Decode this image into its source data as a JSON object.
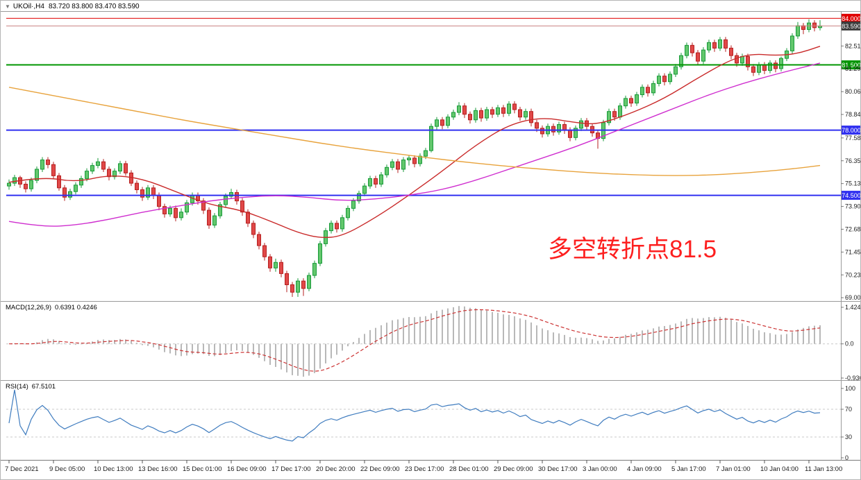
{
  "title": {
    "symbol_period": "UKOil·,H4",
    "ohlc": "83.720 83.800 83.470 83.590"
  },
  "annotation": {
    "text": "多空转折点81.5",
    "color": "#fd1f1f"
  },
  "chart_data": {
    "type": "candlestick",
    "symbol": "UKOil",
    "timeframe": "H4",
    "ohlc_display": {
      "open": "83.720",
      "high": "83.800",
      "low": "83.470",
      "close": "83.590"
    },
    "y_range": {
      "min": 68.9,
      "max": 84.35
    },
    "price_axis_labels": [
      "82.515",
      "81.290",
      "80.065",
      "78.840",
      "77.580",
      "76.355",
      "75.130",
      "73.905",
      "72.680",
      "71.455",
      "70.230",
      "69.005"
    ],
    "levels": [
      {
        "price": 84.0,
        "label": "84.000",
        "color": "#e00000",
        "width": 1
      },
      {
        "price": 81.5,
        "label": "81.500",
        "color": "#009500",
        "width": 2
      },
      {
        "price": 78.0,
        "label": "78.000",
        "color": "#3030f0",
        "width": 2
      },
      {
        "price": 74.5,
        "label": "74.500",
        "color": "#3030f0",
        "width": 2
      }
    ],
    "current_price": {
      "price": 83.59,
      "label": "83.590",
      "line_color": "#c98080",
      "box_color": "#3c3c3c"
    },
    "colors": {
      "up_fill": "#63c76d",
      "up_stroke": "#179a38",
      "down_fill": "#e04848",
      "down_stroke": "#b51f1f",
      "macd_hist": "#b8b8b8",
      "macd_signal": "#cc3333",
      "rsi_line": "#3f7cbf",
      "axis_text": "#1a1a1a",
      "grid": "#c8c8c8",
      "frame": "#9a9a9a"
    },
    "time_axis": [
      {
        "i": 0,
        "label": "7 Dec 2021"
      },
      {
        "i": 8,
        "label": "9 Dec 05:00"
      },
      {
        "i": 16,
        "label": "10 Dec 13:00"
      },
      {
        "i": 24,
        "label": "13 Dec 16:00"
      },
      {
        "i": 32,
        "label": "15 Dec 01:00"
      },
      {
        "i": 40,
        "label": "16 Dec 09:00"
      },
      {
        "i": 48,
        "label": "17 Dec 17:00"
      },
      {
        "i": 56,
        "label": "20 Dec 20:00"
      },
      {
        "i": 64,
        "label": "22 Dec 09:00"
      },
      {
        "i": 72,
        "label": "23 Dec 17:00"
      },
      {
        "i": 80,
        "label": "28 Dec 01:00"
      },
      {
        "i": 88,
        "label": "29 Dec 09:00"
      },
      {
        "i": 96,
        "label": "30 Dec 17:00"
      },
      {
        "i": 104,
        "label": "3 Jan 00:00"
      },
      {
        "i": 112,
        "label": "4 Jan 09:00"
      },
      {
        "i": 120,
        "label": "5 Jan 17:00"
      },
      {
        "i": 128,
        "label": "7 Jan 01:00"
      },
      {
        "i": 136,
        "label": "10 Jan 04:00"
      },
      {
        "i": 144,
        "label": "11 Jan 13:00"
      }
    ],
    "candles": [
      [
        75.0,
        75.35,
        74.8,
        75.15
      ],
      [
        75.15,
        75.6,
        75.0,
        75.45
      ],
      [
        75.45,
        75.55,
        74.9,
        75.1
      ],
      [
        75.1,
        75.25,
        74.65,
        74.85
      ],
      [
        74.85,
        75.45,
        74.7,
        75.3
      ],
      [
        75.3,
        76.05,
        75.15,
        75.9
      ],
      [
        75.9,
        76.55,
        75.75,
        76.4
      ],
      [
        76.4,
        76.55,
        75.95,
        76.15
      ],
      [
        76.15,
        76.3,
        75.4,
        75.55
      ],
      [
        75.55,
        75.7,
        74.75,
        74.9
      ],
      [
        74.9,
        75.05,
        74.2,
        74.4
      ],
      [
        74.4,
        74.85,
        74.25,
        74.7
      ],
      [
        74.7,
        75.2,
        74.55,
        75.05
      ],
      [
        75.05,
        75.55,
        74.9,
        75.4
      ],
      [
        75.4,
        75.95,
        75.25,
        75.8
      ],
      [
        75.8,
        76.25,
        75.65,
        76.1
      ],
      [
        76.1,
        76.5,
        75.95,
        76.3
      ],
      [
        76.3,
        76.45,
        75.75,
        75.9
      ],
      [
        75.9,
        76.05,
        75.3,
        75.5
      ],
      [
        75.5,
        75.95,
        75.35,
        75.8
      ],
      [
        75.8,
        76.35,
        75.65,
        76.2
      ],
      [
        76.2,
        76.35,
        75.55,
        75.7
      ],
      [
        75.7,
        75.85,
        75.0,
        75.15
      ],
      [
        75.15,
        75.3,
        74.6,
        74.8
      ],
      [
        74.8,
        74.95,
        74.2,
        74.4
      ],
      [
        74.4,
        75.05,
        74.25,
        74.9
      ],
      [
        74.9,
        75.05,
        74.3,
        74.5
      ],
      [
        74.5,
        74.65,
        73.7,
        73.9
      ],
      [
        73.9,
        74.05,
        73.3,
        73.5
      ],
      [
        73.5,
        73.95,
        73.35,
        73.8
      ],
      [
        73.8,
        73.95,
        73.1,
        73.3
      ],
      [
        73.3,
        73.8,
        73.15,
        73.6
      ],
      [
        73.6,
        74.25,
        73.45,
        74.1
      ],
      [
        74.1,
        74.65,
        73.95,
        74.5
      ],
      [
        74.5,
        74.65,
        74.0,
        74.2
      ],
      [
        74.2,
        74.35,
        73.5,
        73.7
      ],
      [
        73.7,
        73.85,
        72.7,
        72.9
      ],
      [
        72.9,
        73.55,
        72.75,
        73.4
      ],
      [
        73.4,
        74.15,
        73.25,
        74.0
      ],
      [
        74.0,
        74.6,
        73.85,
        74.45
      ],
      [
        74.45,
        74.85,
        74.3,
        74.65
      ],
      [
        74.65,
        74.8,
        74.0,
        74.2
      ],
      [
        74.2,
        74.35,
        73.4,
        73.6
      ],
      [
        73.6,
        73.75,
        72.8,
        73.0
      ],
      [
        73.0,
        73.15,
        72.2,
        72.4
      ],
      [
        72.4,
        72.55,
        71.6,
        71.8
      ],
      [
        71.8,
        71.95,
        71.0,
        71.2
      ],
      [
        71.2,
        71.35,
        70.4,
        70.6
      ],
      [
        70.6,
        71.1,
        70.4,
        70.9
      ],
      [
        70.9,
        71.05,
        70.1,
        70.3
      ],
      [
        70.3,
        70.45,
        69.3,
        69.7
      ],
      [
        69.7,
        69.85,
        69.05,
        69.3
      ],
      [
        69.3,
        70.05,
        69.05,
        69.9
      ],
      [
        69.9,
        70.05,
        69.1,
        69.5
      ],
      [
        69.5,
        70.35,
        69.35,
        70.2
      ],
      [
        70.2,
        71.0,
        70.05,
        70.85
      ],
      [
        70.85,
        72.05,
        70.7,
        71.9
      ],
      [
        71.9,
        72.75,
        71.75,
        72.6
      ],
      [
        72.6,
        73.15,
        72.45,
        73.0
      ],
      [
        73.0,
        73.15,
        72.5,
        72.7
      ],
      [
        72.7,
        73.45,
        72.55,
        73.3
      ],
      [
        73.3,
        73.95,
        73.15,
        73.8
      ],
      [
        73.8,
        74.35,
        73.65,
        74.2
      ],
      [
        74.2,
        74.75,
        74.05,
        74.6
      ],
      [
        74.6,
        75.15,
        74.45,
        75.0
      ],
      [
        75.0,
        75.55,
        74.85,
        75.4
      ],
      [
        75.4,
        75.55,
        74.9,
        75.1
      ],
      [
        75.1,
        75.75,
        74.95,
        75.6
      ],
      [
        75.6,
        76.15,
        75.45,
        76.0
      ],
      [
        76.0,
        76.45,
        75.85,
        76.3
      ],
      [
        76.3,
        76.45,
        75.7,
        75.9
      ],
      [
        75.9,
        76.55,
        75.75,
        76.4
      ],
      [
        76.4,
        76.65,
        76.1,
        76.5
      ],
      [
        76.5,
        76.65,
        76.0,
        76.2
      ],
      [
        76.2,
        76.75,
        76.05,
        76.6
      ],
      [
        76.6,
        77.05,
        76.45,
        76.9
      ],
      [
        76.9,
        78.35,
        76.8,
        78.2
      ],
      [
        78.2,
        78.7,
        78.0,
        78.55
      ],
      [
        78.55,
        78.7,
        78.05,
        78.25
      ],
      [
        78.25,
        78.85,
        78.1,
        78.7
      ],
      [
        78.7,
        79.1,
        78.55,
        78.95
      ],
      [
        78.95,
        79.5,
        78.8,
        79.3
      ],
      [
        79.3,
        79.45,
        78.65,
        78.85
      ],
      [
        78.85,
        79.0,
        78.35,
        78.55
      ],
      [
        78.55,
        79.2,
        78.4,
        79.05
      ],
      [
        79.05,
        79.2,
        78.45,
        78.65
      ],
      [
        78.65,
        79.25,
        78.5,
        79.1
      ],
      [
        79.1,
        79.25,
        78.65,
        78.85
      ],
      [
        78.85,
        79.35,
        78.7,
        79.2
      ],
      [
        79.2,
        79.35,
        78.7,
        78.9
      ],
      [
        78.9,
        79.55,
        78.75,
        79.4
      ],
      [
        79.4,
        79.55,
        78.9,
        79.1
      ],
      [
        79.1,
        79.25,
        78.5,
        78.7
      ],
      [
        78.7,
        79.15,
        78.55,
        79.0
      ],
      [
        79.0,
        79.15,
        78.2,
        78.4
      ],
      [
        78.4,
        78.55,
        77.9,
        78.1
      ],
      [
        78.1,
        78.25,
        77.6,
        77.8
      ],
      [
        77.8,
        78.35,
        77.65,
        78.2
      ],
      [
        78.2,
        78.35,
        77.7,
        77.9
      ],
      [
        77.9,
        78.45,
        77.75,
        78.3
      ],
      [
        78.3,
        78.45,
        77.8,
        78.0
      ],
      [
        78.0,
        78.15,
        77.4,
        77.6
      ],
      [
        77.6,
        78.25,
        77.45,
        78.1
      ],
      [
        78.1,
        78.65,
        77.95,
        78.5
      ],
      [
        78.5,
        78.65,
        78.0,
        78.2
      ],
      [
        78.2,
        78.35,
        77.65,
        77.85
      ],
      [
        77.85,
        78.0,
        77.0,
        77.55
      ],
      [
        77.55,
        78.55,
        77.4,
        78.4
      ],
      [
        78.4,
        79.15,
        78.25,
        79.0
      ],
      [
        79.0,
        79.15,
        78.5,
        78.7
      ],
      [
        78.7,
        79.45,
        78.55,
        79.3
      ],
      [
        79.3,
        79.85,
        79.15,
        79.7
      ],
      [
        79.7,
        79.85,
        79.25,
        79.45
      ],
      [
        79.45,
        80.05,
        79.3,
        79.9
      ],
      [
        79.9,
        80.45,
        79.75,
        80.3
      ],
      [
        80.3,
        80.45,
        79.8,
        80.0
      ],
      [
        80.0,
        80.65,
        79.85,
        80.5
      ],
      [
        80.5,
        81.05,
        80.35,
        80.9
      ],
      [
        80.9,
        81.05,
        80.4,
        80.6
      ],
      [
        80.6,
        81.15,
        80.45,
        81.0
      ],
      [
        81.0,
        81.55,
        80.85,
        81.4
      ],
      [
        81.4,
        82.15,
        81.25,
        82.0
      ],
      [
        82.0,
        82.7,
        81.85,
        82.55
      ],
      [
        82.55,
        82.7,
        81.95,
        82.15
      ],
      [
        82.15,
        82.3,
        81.5,
        81.7
      ],
      [
        81.7,
        82.45,
        81.55,
        82.3
      ],
      [
        82.3,
        82.85,
        82.15,
        82.7
      ],
      [
        82.7,
        82.85,
        82.2,
        82.4
      ],
      [
        82.4,
        83.0,
        82.25,
        82.85
      ],
      [
        82.85,
        83.0,
        82.2,
        82.4
      ],
      [
        82.4,
        82.55,
        81.8,
        82.0
      ],
      [
        82.0,
        82.15,
        81.4,
        81.6
      ],
      [
        81.6,
        82.1,
        81.45,
        81.95
      ],
      [
        81.95,
        82.1,
        81.2,
        81.4
      ],
      [
        81.4,
        81.55,
        80.9,
        81.1
      ],
      [
        81.1,
        81.65,
        80.95,
        81.5
      ],
      [
        81.5,
        81.65,
        81.0,
        81.2
      ],
      [
        81.2,
        81.75,
        81.05,
        81.6
      ],
      [
        81.6,
        81.75,
        81.1,
        81.3
      ],
      [
        81.3,
        81.95,
        81.15,
        81.85
      ],
      [
        81.85,
        82.4,
        81.7,
        82.25
      ],
      [
        82.25,
        83.2,
        82.1,
        83.05
      ],
      [
        83.05,
        83.8,
        82.9,
        83.6
      ],
      [
        83.6,
        83.75,
        83.15,
        83.4
      ],
      [
        83.4,
        83.95,
        83.25,
        83.75
      ],
      [
        83.75,
        83.9,
        83.3,
        83.5
      ],
      [
        83.5,
        83.9,
        83.35,
        83.59
      ]
    ],
    "moving_averages": [
      {
        "name": "fast-ma",
        "color": "#c92a2a",
        "points": [
          [
            0,
            75.2
          ],
          [
            6,
            75.5
          ],
          [
            12,
            75.2
          ],
          [
            18,
            75.6
          ],
          [
            24,
            75.4
          ],
          [
            30,
            74.7
          ],
          [
            36,
            74.0
          ],
          [
            42,
            73.7
          ],
          [
            48,
            73.0
          ],
          [
            52,
            72.5
          ],
          [
            56,
            72.2
          ],
          [
            60,
            72.3
          ],
          [
            66,
            73.3
          ],
          [
            72,
            74.5
          ],
          [
            78,
            75.8
          ],
          [
            84,
            77.2
          ],
          [
            90,
            78.3
          ],
          [
            96,
            78.7
          ],
          [
            102,
            78.4
          ],
          [
            106,
            78.3
          ],
          [
            112,
            78.9
          ],
          [
            118,
            79.7
          ],
          [
            124,
            80.8
          ],
          [
            130,
            81.8
          ],
          [
            134,
            82.1
          ],
          [
            138,
            82.0
          ],
          [
            142,
            82.1
          ],
          [
            146,
            82.5
          ]
        ]
      },
      {
        "name": "medium-ma",
        "color": "#cf2ecf",
        "points": [
          [
            0,
            73.1
          ],
          [
            6,
            72.8
          ],
          [
            12,
            72.9
          ],
          [
            18,
            73.2
          ],
          [
            24,
            73.6
          ],
          [
            30,
            73.9
          ],
          [
            36,
            74.2
          ],
          [
            42,
            74.4
          ],
          [
            48,
            74.5
          ],
          [
            54,
            74.4
          ],
          [
            60,
            74.2
          ],
          [
            66,
            74.3
          ],
          [
            72,
            74.5
          ],
          [
            78,
            74.8
          ],
          [
            84,
            75.3
          ],
          [
            90,
            75.9
          ],
          [
            96,
            76.5
          ],
          [
            102,
            77.1
          ],
          [
            108,
            77.8
          ],
          [
            114,
            78.5
          ],
          [
            120,
            79.2
          ],
          [
            126,
            79.9
          ],
          [
            132,
            80.5
          ],
          [
            138,
            81.0
          ],
          [
            146,
            81.6
          ]
        ]
      },
      {
        "name": "slow-ma",
        "color": "#e8a33d",
        "points": [
          [
            0,
            80.3
          ],
          [
            8,
            79.85
          ],
          [
            16,
            79.4
          ],
          [
            24,
            78.95
          ],
          [
            32,
            78.5
          ],
          [
            40,
            78.1
          ],
          [
            48,
            77.7
          ],
          [
            56,
            77.3
          ],
          [
            64,
            76.95
          ],
          [
            72,
            76.65
          ],
          [
            80,
            76.35
          ],
          [
            88,
            76.1
          ],
          [
            96,
            75.9
          ],
          [
            104,
            75.72
          ],
          [
            112,
            75.6
          ],
          [
            120,
            75.55
          ],
          [
            128,
            75.6
          ],
          [
            136,
            75.78
          ],
          [
            142,
            75.95
          ],
          [
            146,
            76.1
          ]
        ]
      }
    ],
    "macd": {
      "label": "MACD(12,26,9)",
      "values_text": "0.6391 0.4246",
      "fast": 12,
      "slow": 26,
      "signal": 9,
      "axis_labels": [
        "1.4246",
        "0.0",
        "-0.9363"
      ]
    },
    "rsi": {
      "label": "RSI(14)",
      "value_text": "67.5101",
      "period": 14,
      "axis_labels": [
        "100",
        "70",
        "30",
        "0"
      ],
      "levels": [
        70,
        30
      ]
    }
  }
}
